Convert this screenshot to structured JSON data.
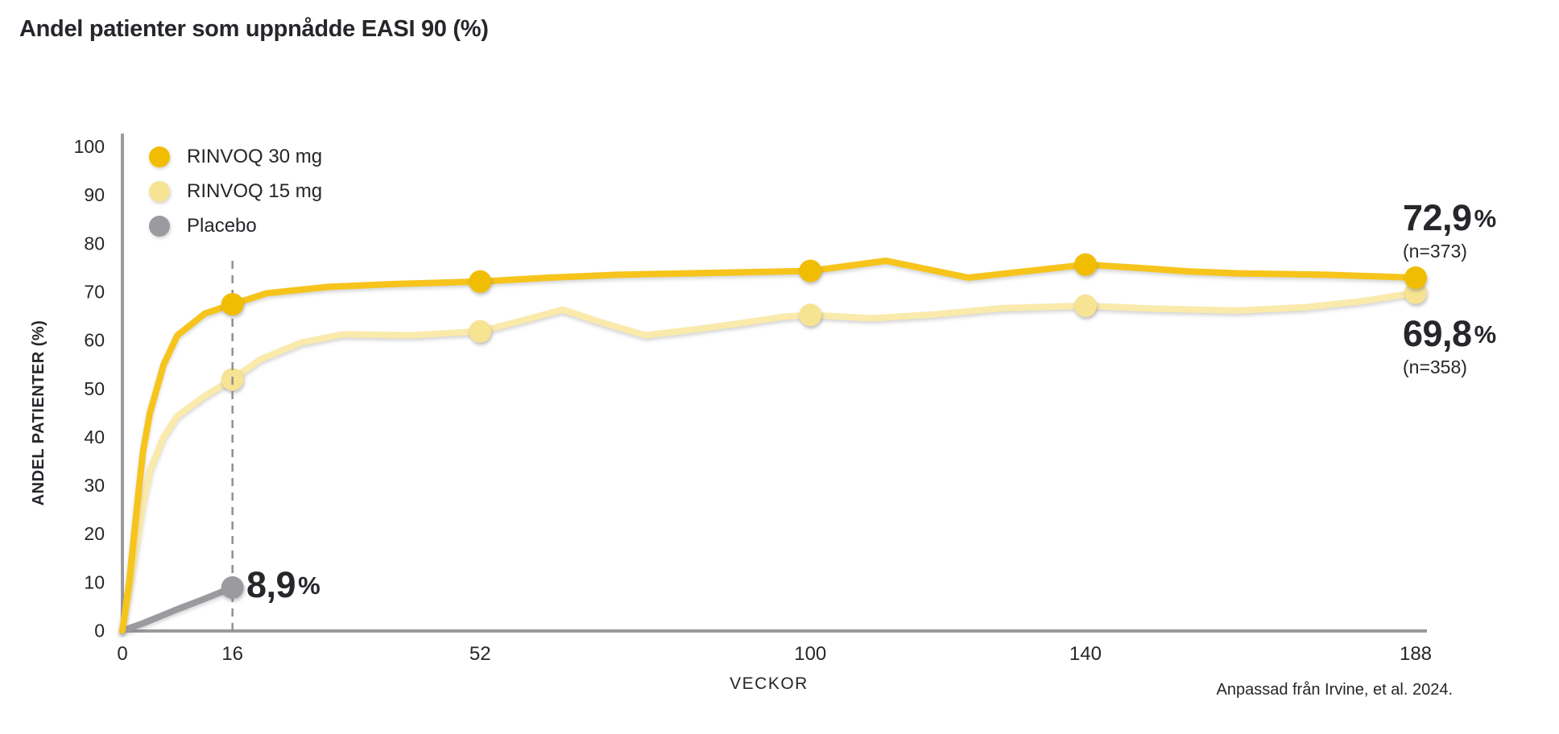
{
  "page": {
    "title": "Andel patienter som uppnådde EASI 90 (%)",
    "footnote": "Anpassad från Irvine, et al. 2024."
  },
  "chart_data": {
    "type": "line",
    "title": "Andel patienter som uppnådde EASI 90 (%)",
    "xlabel": "VECKOR",
    "ylabel": "ANDEL PATIENTER (%)",
    "xlim": [
      0,
      188
    ],
    "ylim": [
      0,
      100
    ],
    "x_ticks": [
      0,
      16,
      52,
      100,
      140,
      188
    ],
    "y_ticks": [
      0,
      10,
      20,
      30,
      40,
      50,
      60,
      70,
      80,
      90,
      100
    ],
    "grid": false,
    "legend_position": "top-left-inside",
    "reference_line": {
      "week": 16,
      "style": "dashed",
      "color": "#8F8F93"
    },
    "axis_color": "#9A9A9E",
    "text_color": "#26262B",
    "series": [
      {
        "name": "RINVOQ 30 mg",
        "color": "#F7C41C",
        "marker_color": "#F1BD02",
        "marker_weeks": [
          16,
          52,
          100,
          140,
          188
        ],
        "result": {
          "value": "72,9",
          "unit": "%",
          "n": "(n=373)"
        },
        "week16_value": 67.4,
        "points": [
          [
            0,
            0
          ],
          [
            1,
            10
          ],
          [
            2,
            24
          ],
          [
            3,
            37
          ],
          [
            4,
            45
          ],
          [
            6,
            55
          ],
          [
            8,
            61
          ],
          [
            12,
            65.5
          ],
          [
            16,
            67.4
          ],
          [
            21,
            69.7
          ],
          [
            30,
            71.0
          ],
          [
            40,
            71.6
          ],
          [
            52,
            72.1
          ],
          [
            62,
            72.9
          ],
          [
            72,
            73.5
          ],
          [
            86,
            73.9
          ],
          [
            100,
            74.3
          ],
          [
            111,
            76.4
          ],
          [
            123,
            72.9
          ],
          [
            140,
            75.6
          ],
          [
            148,
            74.9
          ],
          [
            155,
            74.2
          ],
          [
            162,
            73.8
          ],
          [
            175,
            73.5
          ],
          [
            188,
            72.9
          ]
        ]
      },
      {
        "name": "RINVOQ 15 mg",
        "color": "#FAEAAB",
        "marker_color": "#F7E493",
        "marker_weeks": [
          16,
          52,
          100,
          140,
          188
        ],
        "result": {
          "value": "69,8",
          "unit": "%",
          "n": "(n=358)"
        },
        "week16_value": 51.9,
        "points": [
          [
            0,
            0
          ],
          [
            1,
            8
          ],
          [
            2,
            17
          ],
          [
            3,
            26
          ],
          [
            4,
            33
          ],
          [
            6,
            40
          ],
          [
            8,
            44.3
          ],
          [
            12,
            48.5
          ],
          [
            16,
            51.9
          ],
          [
            20,
            56
          ],
          [
            26,
            59.5
          ],
          [
            32,
            61.2
          ],
          [
            42,
            61
          ],
          [
            52,
            61.8
          ],
          [
            58,
            64
          ],
          [
            64,
            66.3
          ],
          [
            70,
            63.5
          ],
          [
            76,
            61
          ],
          [
            82,
            62
          ],
          [
            90,
            63.5
          ],
          [
            96,
            64.8
          ],
          [
            100,
            65.2
          ],
          [
            109,
            64.5
          ],
          [
            118,
            65.3
          ],
          [
            128,
            66.6
          ],
          [
            140,
            67.1
          ],
          [
            150,
            66.5
          ],
          [
            162,
            66.1
          ],
          [
            172,
            66.8
          ],
          [
            180,
            68
          ],
          [
            188,
            69.8
          ]
        ]
      },
      {
        "name": "Placebo",
        "color": "#9B9B9F",
        "marker_color": "#9B9B9F",
        "marker_weeks": [
          16
        ],
        "result": {
          "value": "8,9",
          "unit": "%",
          "n": ""
        },
        "week16_value": 8.9,
        "points": [
          [
            0,
            0
          ],
          [
            3,
            1.5
          ],
          [
            8,
            4.4
          ],
          [
            12,
            6.6
          ],
          [
            16,
            8.9
          ]
        ]
      }
    ]
  }
}
